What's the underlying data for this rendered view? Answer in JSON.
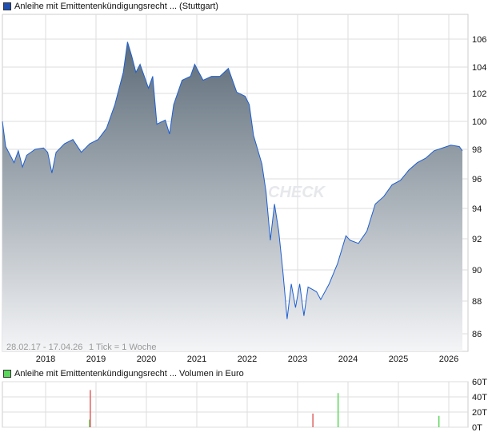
{
  "price_legend": {
    "label": "Anleihe mit Emittentenkündigungsrecht ... (Stuttgart)",
    "color": "#1f4fb0"
  },
  "volume_legend": {
    "label": "Anleihe mit Emittentenkündigungsrecht ... Volumen in Euro",
    "color": "#5ad65a"
  },
  "range_info": "28.02.17 - 17.04.26",
  "tick_info": "1 Tick = 1 Woche",
  "watermark": "CHECK",
  "chart_data": [
    {
      "type": "area",
      "y_ticks": [
        86,
        88,
        90,
        92,
        94,
        96,
        98,
        100,
        102,
        104,
        106
      ],
      "x_ticks": [
        "2018",
        "2019",
        "2020",
        "2021",
        "2022",
        "2023",
        "2024",
        "2025",
        "2026"
      ],
      "grid": true,
      "line_color": "#1f5fd0",
      "fill_gradient": [
        "#5c6b78",
        "#f4f5f7"
      ],
      "points": [
        [
          "2017-02",
          100.0
        ],
        [
          "2017-03",
          98.2
        ],
        [
          "2017-05",
          97.1
        ],
        [
          "2017-06",
          97.9
        ],
        [
          "2017-07",
          96.8
        ],
        [
          "2017-08",
          97.6
        ],
        [
          "2017-10",
          98.0
        ],
        [
          "2017-12",
          98.1
        ],
        [
          "2018-01",
          97.8
        ],
        [
          "2018-02",
          96.4
        ],
        [
          "2018-03",
          97.8
        ],
        [
          "2018-05",
          98.4
        ],
        [
          "2018-07",
          98.7
        ],
        [
          "2018-09",
          97.8
        ],
        [
          "2018-11",
          98.4
        ],
        [
          "2019-01",
          98.7
        ],
        [
          "2019-03",
          99.5
        ],
        [
          "2019-05",
          101.2
        ],
        [
          "2019-07",
          103.6
        ],
        [
          "2019-08",
          105.8
        ],
        [
          "2019-09",
          104.8
        ],
        [
          "2019-10",
          103.6
        ],
        [
          "2019-11",
          104.2
        ],
        [
          "2020-01",
          102.4
        ],
        [
          "2020-02",
          103.3
        ],
        [
          "2020-03",
          99.8
        ],
        [
          "2020-05",
          100.1
        ],
        [
          "2020-06",
          99.1
        ],
        [
          "2020-07",
          101.2
        ],
        [
          "2020-09",
          103.0
        ],
        [
          "2020-11",
          103.3
        ],
        [
          "2020-12",
          104.2
        ],
        [
          "2021-01",
          103.6
        ],
        [
          "2021-02",
          103.0
        ],
        [
          "2021-04",
          103.3
        ],
        [
          "2021-06",
          103.3
        ],
        [
          "2021-08",
          103.9
        ],
        [
          "2021-10",
          102.1
        ],
        [
          "2021-12",
          101.8
        ],
        [
          "2022-01",
          101.2
        ],
        [
          "2022-02",
          99.0
        ],
        [
          "2022-04",
          97.0
        ],
        [
          "2022-05",
          95.1
        ],
        [
          "2022-06",
          91.9
        ],
        [
          "2022-07",
          94.3
        ],
        [
          "2022-08",
          92.5
        ],
        [
          "2022-09",
          89.9
        ],
        [
          "2022-10",
          86.9
        ],
        [
          "2022-11",
          89.1
        ],
        [
          "2022-12",
          87.6
        ],
        [
          "2023-01",
          89.1
        ],
        [
          "2023-02",
          87.1
        ],
        [
          "2023-03",
          88.9
        ],
        [
          "2023-05",
          88.6
        ],
        [
          "2023-06",
          88.1
        ],
        [
          "2023-08",
          89.1
        ],
        [
          "2023-10",
          90.4
        ],
        [
          "2023-12",
          92.2
        ],
        [
          "2024-01",
          91.9
        ],
        [
          "2024-03",
          91.7
        ],
        [
          "2024-05",
          92.5
        ],
        [
          "2024-07",
          94.3
        ],
        [
          "2024-09",
          94.8
        ],
        [
          "2024-11",
          95.6
        ],
        [
          "2025-01",
          95.9
        ],
        [
          "2025-03",
          96.6
        ],
        [
          "2025-05",
          97.1
        ],
        [
          "2025-07",
          97.4
        ],
        [
          "2025-09",
          97.9
        ],
        [
          "2025-12",
          98.2
        ],
        [
          "2026-01",
          98.3
        ],
        [
          "2026-03",
          98.2
        ],
        [
          "2026-04",
          97.9
        ]
      ]
    },
    {
      "type": "bar",
      "y_ticks": [
        "0T",
        "20T",
        "40T",
        "60T"
      ],
      "ylim": [
        0,
        60
      ],
      "unit": "T",
      "bars": [
        {
          "date": "2018-11",
          "value": 10,
          "color": "#5ad65a"
        },
        {
          "date": "2018-11",
          "value": 49,
          "color": "#e06060"
        },
        {
          "date": "2023-04",
          "value": 18,
          "color": "#e06060"
        },
        {
          "date": "2023-10",
          "value": 45,
          "color": "#5ad65a"
        },
        {
          "date": "2025-10",
          "value": 15,
          "color": "#5ad65a"
        }
      ]
    }
  ]
}
